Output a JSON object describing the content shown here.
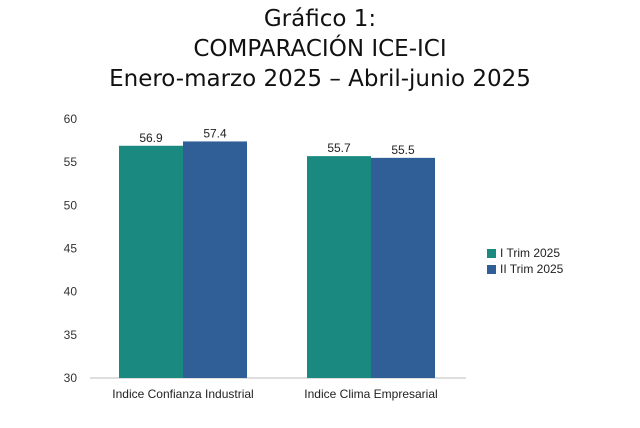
{
  "title": {
    "line1": "Gráfico 1:",
    "line2": "COMPARACIÓN ICE-ICI",
    "line3": "Enero-marzo 2025 – Abril-junio 2025"
  },
  "colors": {
    "series1": "#1a8a80",
    "series2": "#2f5f96"
  },
  "chart_data": {
    "type": "bar",
    "categories": [
      "Indice Confianza Industrial",
      "Indice Clima Empresarial"
    ],
    "series": [
      {
        "name": "I Trim 2025",
        "values": [
          56.9,
          55.7
        ],
        "labels": [
          "56.9",
          "55.7"
        ]
      },
      {
        "name": "II Trim 2025",
        "values": [
          57.4,
          55.5
        ],
        "labels": [
          "57.4",
          "55.5"
        ]
      }
    ],
    "ylim": [
      30,
      60
    ],
    "yticks": [
      30,
      35,
      40,
      45,
      50,
      55,
      60
    ],
    "grid": false,
    "legend_position": "right"
  }
}
